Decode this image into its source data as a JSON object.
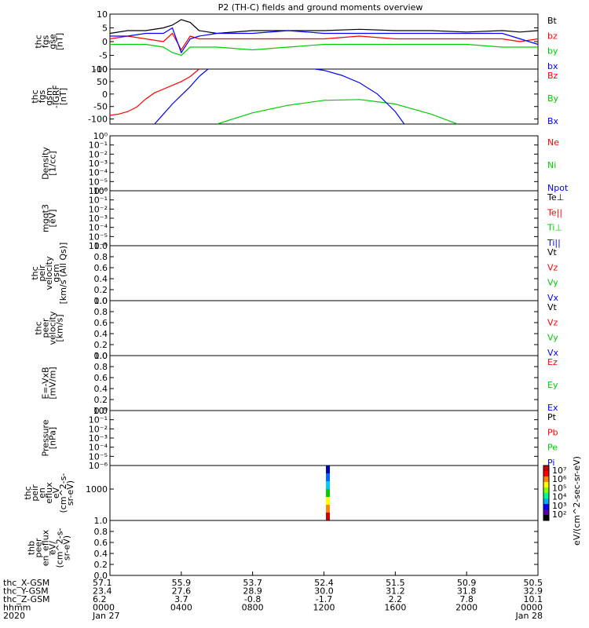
{
  "chart_data": {
    "type": "line",
    "title": "P2 (TH-C) fields and ground moments overview",
    "panels": [
      {
        "ylabel": [
          "thc",
          "fgs",
          "gse",
          "[nT]"
        ],
        "ylim": [
          -10,
          10
        ],
        "yticks": [
          "10",
          "5",
          "0",
          "-5",
          "-10"
        ],
        "legend": [
          {
            "name": "Bt",
            "color": "#000000"
          },
          {
            "name": "bz",
            "color": "#ff0000"
          },
          {
            "name": "by",
            "color": "#00cc00"
          },
          {
            "name": "bx",
            "color": "#0000ff"
          }
        ],
        "series": [
          {
            "name": "Bt",
            "color": "#000000",
            "x": [
              0,
              1,
              2,
              3,
              3.5,
              4,
              4.5,
              5,
              6,
              8,
              10,
              12,
              14,
              16,
              18,
              20,
              22,
              23,
              24
            ],
            "y": [
              3,
              4,
              4,
              5,
              6,
              8,
              7,
              4,
              3,
              4,
              4,
              4,
              4.5,
              4,
              4,
              3.5,
              4,
              3.5,
              4
            ]
          },
          {
            "name": "bz",
            "color": "#ff0000",
            "x": [
              0,
              1,
              2,
              3,
              3.5,
              4,
              4.5,
              5,
              6,
              8,
              10,
              12,
              14,
              16,
              18,
              20,
              22,
              23,
              24
            ],
            "y": [
              1,
              2,
              1,
              0,
              3,
              -3,
              2,
              1,
              1,
              1,
              1,
              1,
              2,
              1,
              1,
              1,
              1,
              0,
              1
            ]
          },
          {
            "name": "by",
            "color": "#00cc00",
            "x": [
              0,
              1,
              2,
              3,
              3.5,
              4,
              4.5,
              5,
              6,
              8,
              10,
              12,
              14,
              16,
              18,
              20,
              22,
              23,
              24
            ],
            "y": [
              -1,
              -1,
              -1,
              -2,
              -4,
              -5,
              -2,
              -2,
              -2,
              -3,
              -2,
              -1,
              -1,
              -1,
              -1,
              -1,
              -2,
              -2,
              -2
            ]
          },
          {
            "name": "bx",
            "color": "#0000ff",
            "x": [
              0,
              1,
              2,
              3,
              3.5,
              4,
              4.5,
              5,
              6,
              8,
              10,
              12,
              14,
              16,
              18,
              20,
              22,
              23,
              24
            ],
            "y": [
              2,
              2,
              3,
              3,
              5,
              -4,
              1,
              2,
              3,
              3,
              4,
              3,
              3,
              3,
              3,
              3,
              3,
              1,
              -1
            ]
          }
        ]
      },
      {
        "ylabel": [
          "thc",
          "fgs",
          "gsm",
          "-IGRF",
          "[nT]"
        ],
        "ylim": [
          -120,
          100
        ],
        "yticks": [
          "100",
          "50",
          "0",
          "-50",
          "-100"
        ],
        "legend": [
          {
            "name": "Bz",
            "color": "#ff0000"
          },
          {
            "name": "By",
            "color": "#00cc00"
          },
          {
            "name": "Bx",
            "color": "#0000ff"
          }
        ],
        "series": [
          {
            "name": "Bz",
            "color": "#ff0000",
            "x": [
              0,
              0.5,
              1,
              1.5,
              2,
              2.5,
              3,
              3.5,
              4,
              4.5,
              5
            ],
            "y": [
              -85,
              -80,
              -70,
              -52,
              -20,
              5,
              20,
              35,
              50,
              70,
              100
            ]
          },
          {
            "name": "By",
            "color": "#00cc00",
            "x": [
              6,
              8,
              10,
              12,
              14,
              16,
              18,
              19.5
            ],
            "y": [
              -120,
              -75,
              -45,
              -25,
              -22,
              -40,
              -80,
              -120
            ]
          },
          {
            "name": "Bx",
            "color": "#0000ff",
            "x": [
              2.5,
              3,
              3.5,
              4,
              4.5,
              5,
              5.5
            ],
            "y": [
              -120,
              -80,
              -40,
              -5,
              30,
              70,
              100
            ]
          },
          {
            "name": "Bx",
            "color": "#0000ff",
            "x": [
              11.5,
              12,
              13,
              14,
              15,
              16,
              16.5
            ],
            "y": [
              100,
              95,
              75,
              45,
              0,
              -70,
              -120
            ]
          }
        ]
      },
      {
        "ylabel": [
          "Density",
          "[1/cc]"
        ],
        "yticks": [
          "10⁰",
          "10⁻¹",
          "10⁻²",
          "10⁻³",
          "10⁻⁴",
          "10⁻⁵",
          "10⁻⁶"
        ],
        "legend": [
          {
            "name": "Ne",
            "color": "#ff0000"
          },
          {
            "name": "Ni",
            "color": "#00cc00"
          },
          {
            "name": "Npot",
            "color": "#0000ff"
          }
        ]
      },
      {
        "ylabel": [
          "mgqt3",
          "[eV]"
        ],
        "yticks": [
          "10⁰",
          "10⁻¹",
          "10⁻²",
          "10⁻³",
          "10⁻⁴",
          "10⁻⁵",
          "10⁻⁶"
        ],
        "legend": [
          {
            "name": "Te⊥",
            "color": "#000000"
          },
          {
            "name": "Te||",
            "color": "#ff0000"
          },
          {
            "name": "Ti⊥",
            "color": "#00cc00"
          },
          {
            "name": "Ti||",
            "color": "#0000ff"
          }
        ]
      },
      {
        "ylabel": [
          "thc",
          "peir",
          "velocity",
          "gsm",
          "[km/s (All Qs)]"
        ],
        "yticks": [
          "1.0",
          "0.8",
          "0.6",
          "0.4",
          "0.2",
          "0.0"
        ],
        "legend": [
          {
            "name": "Vt",
            "color": "#000000"
          },
          {
            "name": "Vz",
            "color": "#ff0000"
          },
          {
            "name": "Vy",
            "color": "#00cc00"
          },
          {
            "name": "Vx",
            "color": "#0000ff"
          }
        ]
      },
      {
        "ylabel": [
          "thc",
          "peer",
          "velocity",
          "[km/s]"
        ],
        "yticks": [
          "1.0",
          "0.8",
          "0.6",
          "0.4",
          "0.2",
          "0.0"
        ],
        "legend": [
          {
            "name": "Vt",
            "color": "#000000"
          },
          {
            "name": "Vz",
            "color": "#ff0000"
          },
          {
            "name": "Vy",
            "color": "#00cc00"
          },
          {
            "name": "Vx",
            "color": "#0000ff"
          }
        ]
      },
      {
        "ylabel": [
          "E=-VxB",
          "[mV/m]"
        ],
        "yticks": [
          "1.0",
          "0.8",
          "0.6",
          "0.4",
          "0.2",
          "0.0"
        ],
        "legend": [
          {
            "name": "Ez",
            "color": "#ff0000"
          },
          {
            "name": "Ey",
            "color": "#00cc00"
          },
          {
            "name": "Ex",
            "color": "#0000ff"
          }
        ]
      },
      {
        "ylabel": [
          "Pressure",
          "[nPa]"
        ],
        "yticks": [
          "10⁰",
          "10⁻¹",
          "10⁻²",
          "10⁻³",
          "10⁻⁴",
          "10⁻⁵",
          "10⁻⁶"
        ],
        "legend": [
          {
            "name": "Pt",
            "color": "#000000"
          },
          {
            "name": "Pb",
            "color": "#ff0000"
          },
          {
            "name": "Pe",
            "color": "#00cc00"
          },
          {
            "name": "Pi",
            "color": "#0000ff"
          }
        ]
      },
      {
        "ylabel": [
          "thc",
          "peir",
          "en",
          "eflux",
          "eV",
          "(cm^2-s-",
          "sr-eV)"
        ],
        "yticks": [
          "1000"
        ],
        "spectrogram": {
          "x_hour": 12.2,
          "colors": [
            "#0000aa",
            "#0066ff",
            "#00ccff",
            "#00cc00",
            "#ffff00",
            "#ff8800",
            "#cc0000"
          ]
        },
        "colorbar": {
          "labels": [
            "10⁷",
            "10⁶",
            "10⁵",
            "10⁴",
            "10³",
            "10²"
          ],
          "title": "eV/(cm^2-sec-sr-eV)"
        }
      },
      {
        "ylabel": [
          "thb",
          "peer",
          "en_eflux",
          "eV/",
          "(cm^2-s-",
          "sr-eV)"
        ],
        "yticks": [
          "1.0",
          "0.8",
          "0.6",
          "0.4",
          "0.2",
          "0.0"
        ]
      }
    ],
    "x_axis": {
      "range_hours": [
        0,
        24
      ],
      "tick_hours": [
        0,
        4,
        8,
        12,
        16,
        20,
        24
      ],
      "rows": [
        {
          "label": "thc_X-GSM",
          "values": [
            "57.1",
            "55.9",
            "53.7",
            "52.4",
            "51.5",
            "50.9",
            "50.5"
          ]
        },
        {
          "label": "thc_Y-GSM",
          "values": [
            "23.4",
            "27.6",
            "28.9",
            "30.0",
            "31.2",
            "31.8",
            "32.9"
          ]
        },
        {
          "label": "thc_Z-GSM",
          "values": [
            "6.2",
            "3.7",
            "-0.8",
            "-1.7",
            "2.2",
            "7.8",
            "10.1"
          ]
        },
        {
          "label": "hhmm",
          "values": [
            "0000",
            "0400",
            "0800",
            "1200",
            "1600",
            "2000",
            "0000"
          ]
        },
        {
          "label": "2020",
          "values": [
            "Jan 27",
            "",
            "",
            "",
            "",
            "",
            "Jan 28"
          ]
        }
      ]
    }
  }
}
